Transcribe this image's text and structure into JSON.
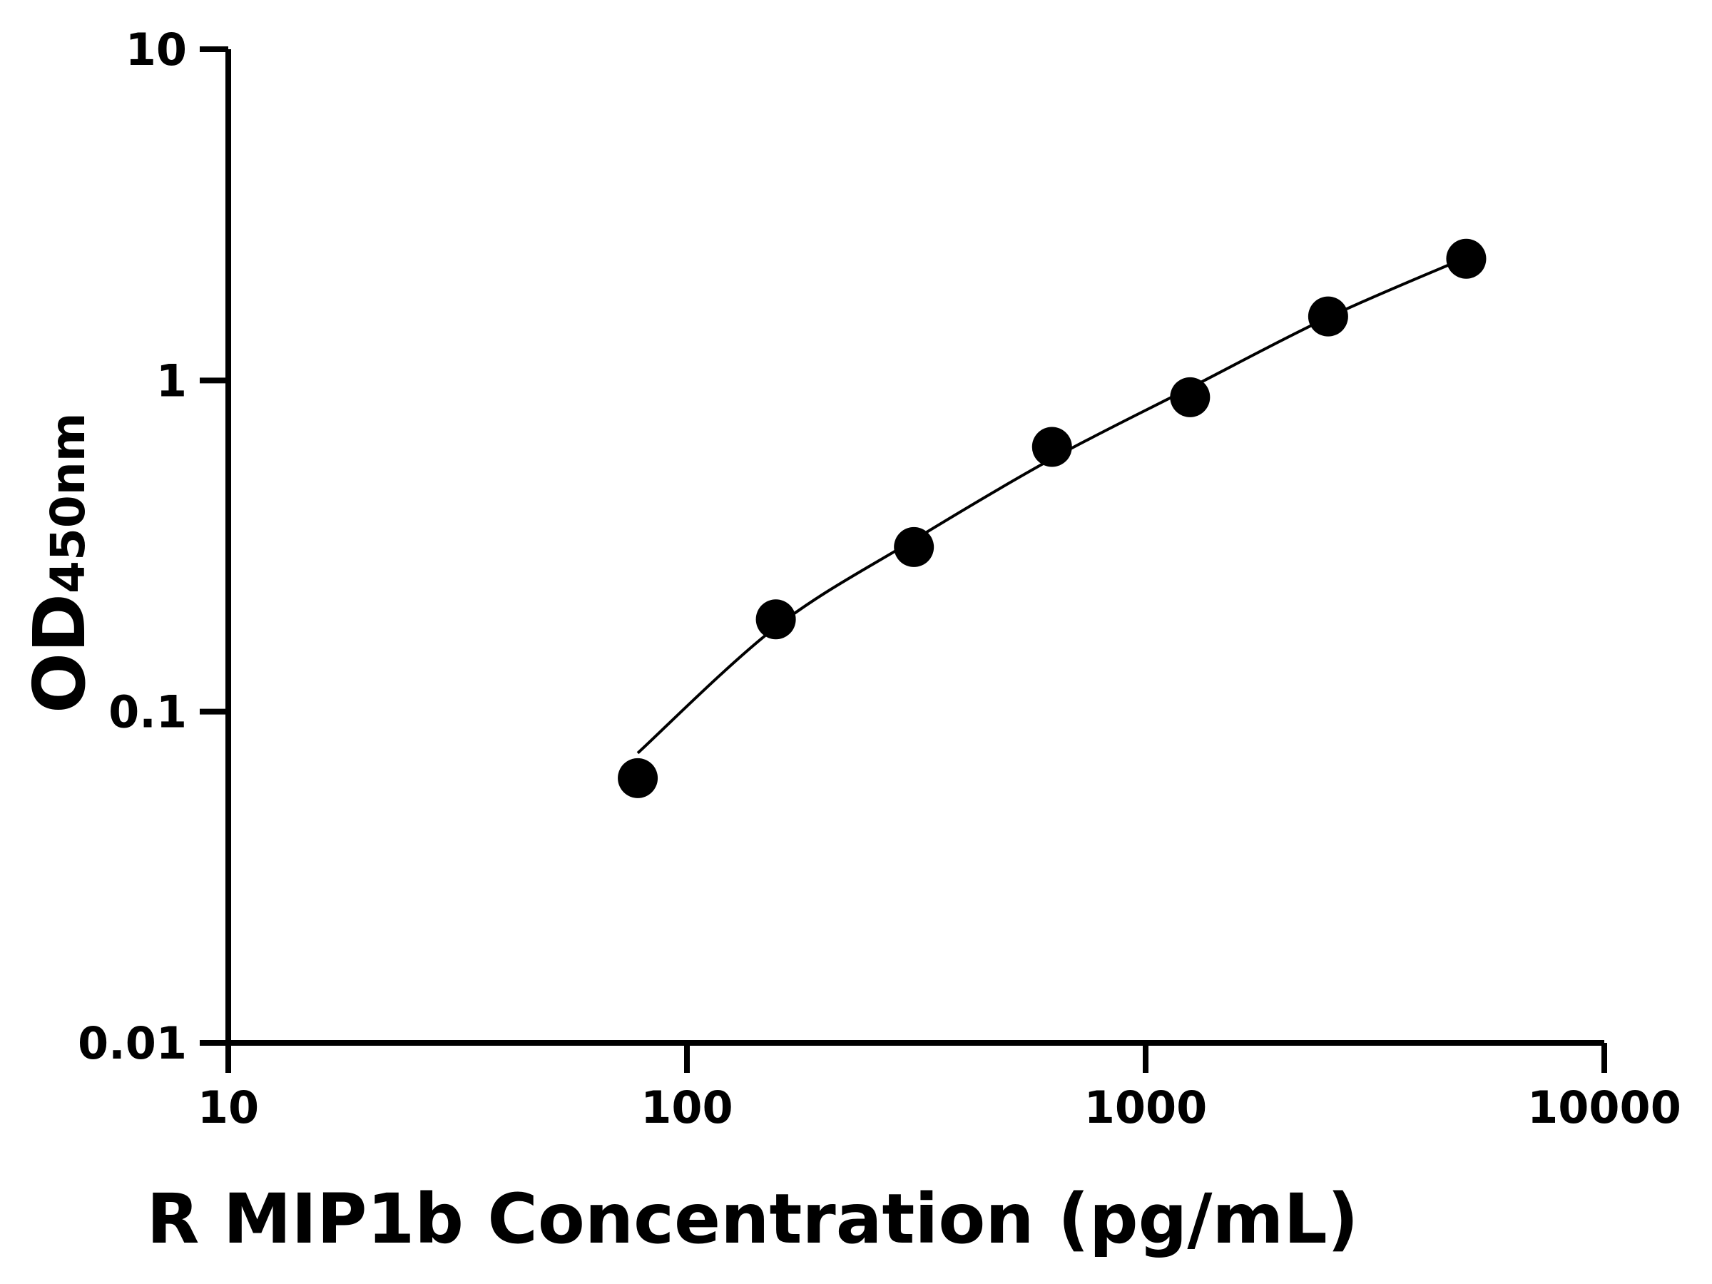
{
  "chart_data": {
    "type": "scatter",
    "xlabel": "R MIP1b Concentration (pg/mL)",
    "ylabel_main": "OD",
    "ylabel_sub": "450nm",
    "x_scale": "log",
    "y_scale": "log",
    "xlim": [
      10,
      10000
    ],
    "ylim": [
      0.01,
      10
    ],
    "x_ticks": [
      "10",
      "100",
      "1000",
      "10000"
    ],
    "y_ticks": [
      "0.01",
      "0.1",
      "1",
      "10"
    ],
    "grid": false,
    "points": {
      "x": [
        78.125,
        156.25,
        312.5,
        625,
        1250,
        2500,
        5000
      ],
      "y": [
        0.063,
        0.19,
        0.314,
        0.63,
        0.89,
        1.56,
        2.33
      ]
    },
    "fit_curve": {
      "x": [
        78.125,
        156.25,
        312.5,
        625,
        1250,
        2500,
        5000
      ],
      "y": [
        0.075,
        0.18,
        0.33,
        0.58,
        0.95,
        1.55,
        2.35
      ]
    },
    "colors": {
      "points": "#000000",
      "curve": "#000000",
      "axes": "#000000"
    }
  }
}
